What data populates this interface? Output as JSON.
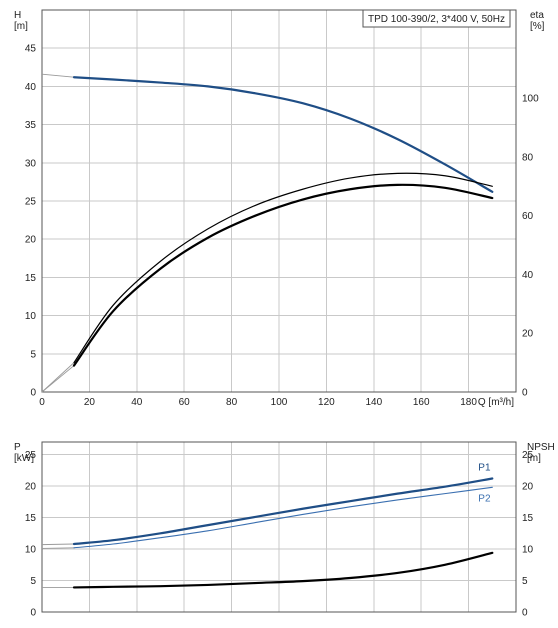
{
  "chart_data": [
    {
      "type": "line",
      "title": "TPD 100-390/2, 3*400 V, 50Hz",
      "xlabel": "Q [m³/h]",
      "x_ticks": [
        0,
        20,
        40,
        60,
        80,
        100,
        120,
        140,
        160,
        180
      ],
      "x_tick_labels": [
        "0",
        "20",
        "40",
        "60",
        "80",
        "100",
        "120",
        "140",
        "160",
        "180"
      ],
      "xlim": [
        0,
        200
      ],
      "grid": true,
      "ylabel_left": [
        "H",
        "[m]"
      ],
      "ylim_left": [
        0,
        50
      ],
      "y_ticks_left": [
        0,
        5,
        10,
        15,
        20,
        25,
        30,
        35,
        40,
        45
      ],
      "ylabel_right": [
        "eta",
        "[%]"
      ],
      "ylim_right": [
        0,
        130
      ],
      "y_ticks_right": [
        0,
        20,
        40,
        60,
        80,
        100
      ],
      "series": [
        {
          "axis": "left",
          "color": "#1f4e86",
          "width": 2.2,
          "points": [
            [
              13.5,
              41.2
            ],
            [
              30,
              40.9
            ],
            [
              50,
              40.5
            ],
            [
              70,
              40.0
            ],
            [
              90,
              39.1
            ],
            [
              110,
              37.8
            ],
            [
              130,
              35.8
            ],
            [
              150,
              33.1
            ],
            [
              170,
              29.8
            ],
            [
              190,
              26.2
            ]
          ],
          "extension": [
            [
              0,
              41.6
            ],
            [
              13.5,
              41.2
            ]
          ]
        },
        {
          "axis": "right",
          "color": "#000000",
          "width": 1.2,
          "points": [
            [
              13.5,
              10.0
            ],
            [
              30,
              29.5
            ],
            [
              50,
              44.5
            ],
            [
              70,
              55.5
            ],
            [
              90,
              63.5
            ],
            [
              110,
              69.0
            ],
            [
              130,
              72.8
            ],
            [
              150,
              74.4
            ],
            [
              170,
              73.6
            ],
            [
              190,
              70.0
            ]
          ],
          "extension": [
            [
              0,
              0
            ],
            [
              13.5,
              10.0
            ]
          ]
        },
        {
          "axis": "right",
          "color": "#000000",
          "width": 2.2,
          "points": [
            [
              13.5,
              9.0
            ],
            [
              30,
              27.5
            ],
            [
              50,
              42.0
            ],
            [
              70,
              52.5
            ],
            [
              90,
              60.0
            ],
            [
              110,
              65.5
            ],
            [
              130,
              69.0
            ],
            [
              150,
              70.5
            ],
            [
              170,
              69.5
            ],
            [
              190,
              66.0
            ]
          ],
          "extension": [
            [
              0,
              0
            ],
            [
              13.5,
              9.0
            ]
          ]
        }
      ]
    },
    {
      "type": "line",
      "xlim": [
        0,
        200
      ],
      "x_ticks": [
        0,
        20,
        40,
        60,
        80,
        100,
        120,
        140,
        160,
        180
      ],
      "grid": true,
      "ylabel_left": [
        "P",
        "[kW]"
      ],
      "ylim_left": [
        0,
        27
      ],
      "y_ticks_left": [
        0,
        5,
        10,
        15,
        20,
        25
      ],
      "ylabel_right": [
        "NPSH",
        "[m]"
      ],
      "ylim_right": [
        0,
        27
      ],
      "y_ticks_right": [
        0,
        5,
        10,
        15,
        20,
        25
      ],
      "series": [
        {
          "name": "P1",
          "axis": "left",
          "color": "#1f4e86",
          "width": 2.2,
          "points": [
            [
              13.5,
              10.8
            ],
            [
              30,
              11.4
            ],
            [
              50,
              12.5
            ],
            [
              70,
              13.8
            ],
            [
              90,
              15.1
            ],
            [
              110,
              16.4
            ],
            [
              130,
              17.6
            ],
            [
              150,
              18.8
            ],
            [
              170,
              19.9
            ],
            [
              190,
              21.2
            ]
          ],
          "extension": [
            [
              0,
              10.7
            ],
            [
              13.5,
              10.8
            ]
          ]
        },
        {
          "name": "P2",
          "axis": "left",
          "color": "#3a6fb0",
          "width": 1.1,
          "points": [
            [
              13.5,
              10.2
            ],
            [
              30,
              10.8
            ],
            [
              50,
              11.8
            ],
            [
              70,
              12.9
            ],
            [
              90,
              14.2
            ],
            [
              110,
              15.5
            ],
            [
              130,
              16.7
            ],
            [
              150,
              17.8
            ],
            [
              170,
              18.8
            ],
            [
              190,
              19.8
            ]
          ],
          "extension": [
            [
              0,
              10.1
            ],
            [
              13.5,
              10.2
            ]
          ]
        },
        {
          "axis": "right",
          "color": "#000000",
          "width": 2.2,
          "points": [
            [
              13.5,
              3.9
            ],
            [
              30,
              4.0
            ],
            [
              50,
              4.1
            ],
            [
              70,
              4.3
            ],
            [
              90,
              4.6
            ],
            [
              110,
              4.9
            ],
            [
              130,
              5.4
            ],
            [
              150,
              6.2
            ],
            [
              170,
              7.5
            ],
            [
              190,
              9.4
            ]
          ],
          "extension": [
            [
              0,
              3.9
            ],
            [
              13.5,
              3.9
            ]
          ]
        }
      ]
    }
  ]
}
